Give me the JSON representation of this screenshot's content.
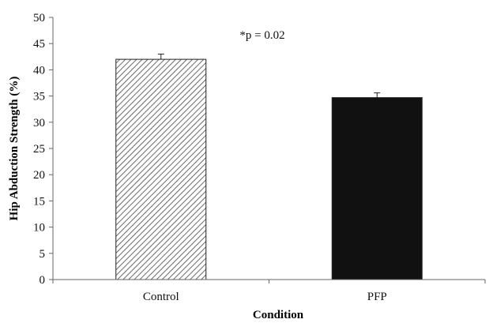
{
  "chart_data": {
    "type": "bar",
    "categories": [
      "Control",
      "PFP"
    ],
    "values": [
      42,
      34.7
    ],
    "error_bars": [
      1.0,
      0.9
    ],
    "xlabel": "Condition",
    "ylabel": "Hip Abduction Strength (%)",
    "ylim": [
      0,
      50
    ],
    "yticks": [
      0,
      5,
      10,
      15,
      20,
      25,
      30,
      35,
      40,
      45,
      50
    ],
    "grid": false,
    "legend": "none",
    "annotation": "*p = 0.02",
    "bar_styles": [
      "diagonal-hatch",
      "solid"
    ],
    "colors": {
      "hatch_line": "#444444",
      "solid_fill": "#111111",
      "axis": "#666666"
    }
  }
}
